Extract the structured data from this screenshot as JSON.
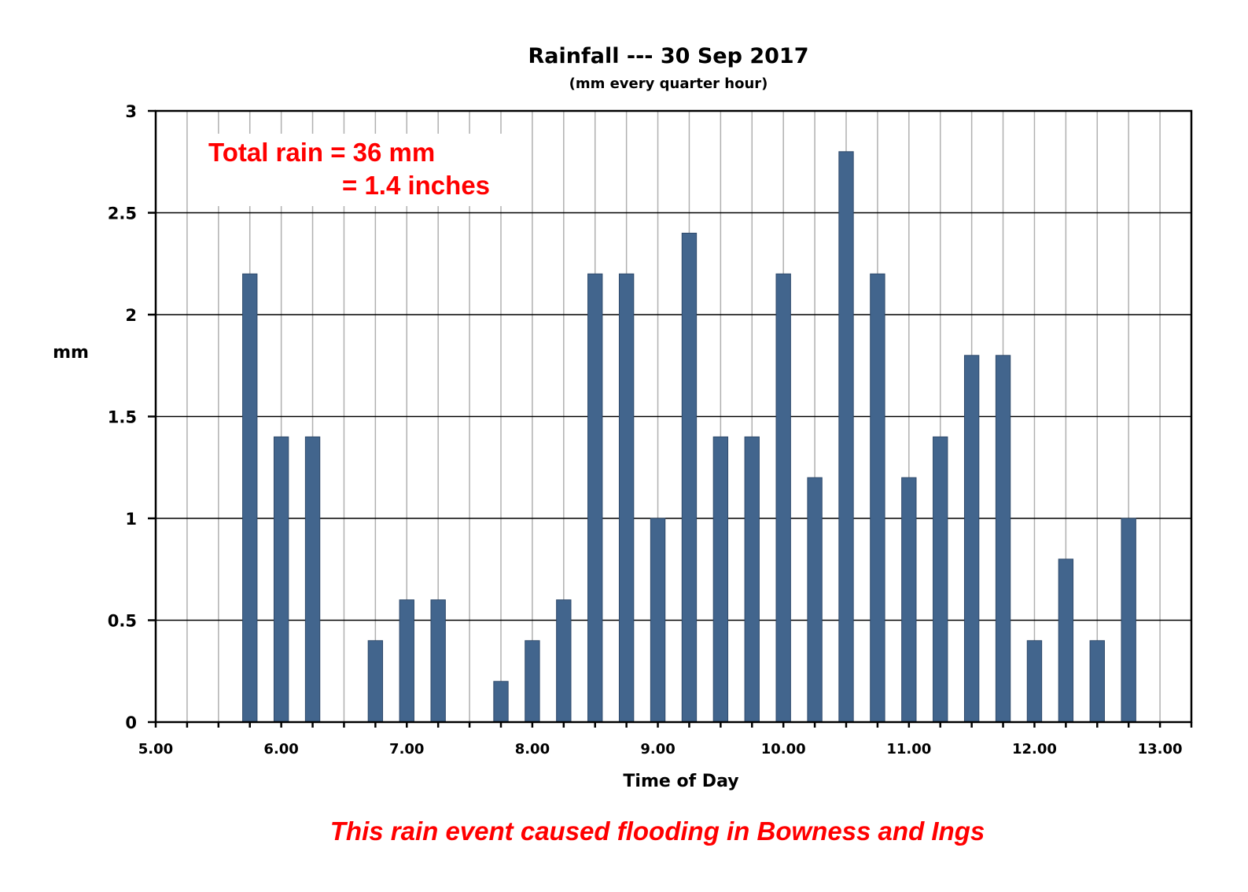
{
  "chart_data": {
    "type": "bar",
    "title": "Rainfall --- 30 Sep 2017",
    "subtitle": "(mm every quarter hour)",
    "xlabel": "Time of Day",
    "ylabel": "mm",
    "xlim": [
      5.0,
      13.25
    ],
    "ylim": [
      0,
      3
    ],
    "x_ticks": [
      "5.00",
      "6.00",
      "7.00",
      "8.00",
      "9.00",
      "10.00",
      "11.00",
      "12.00",
      "13.00"
    ],
    "y_ticks": [
      "0",
      "0.5",
      "1",
      "1.5",
      "2",
      "2.5",
      "3"
    ],
    "grid": true,
    "series": [
      {
        "x": [
          5.75,
          6.0,
          6.25,
          6.75,
          7.0,
          7.25,
          7.75,
          8.0,
          8.25,
          8.5,
          8.75,
          9.0,
          9.25,
          9.5,
          9.75,
          10.0,
          10.25,
          10.5,
          10.75,
          11.0,
          11.25,
          11.5,
          11.75,
          12.0,
          12.25,
          12.5,
          12.75
        ],
        "values": [
          2.2,
          1.4,
          1.4,
          0.4,
          0.6,
          0.6,
          0.2,
          0.4,
          0.6,
          2.2,
          2.2,
          1.0,
          2.4,
          1.4,
          1.4,
          2.2,
          1.2,
          2.8,
          2.2,
          1.2,
          1.4,
          1.8,
          1.8,
          0.4,
          0.8,
          0.4,
          1.0
        ],
        "color": "#42658d"
      }
    ],
    "annotations": {
      "total_line1": "Total rain = 36 mm",
      "total_line2": "= 1.4 inches"
    }
  },
  "footer": "This rain event caused flooding in Bowness and Ings",
  "colors": {
    "bar_fill": "#42658d",
    "bar_edge": "#2f4a6b",
    "annotation": "#ff0000"
  }
}
